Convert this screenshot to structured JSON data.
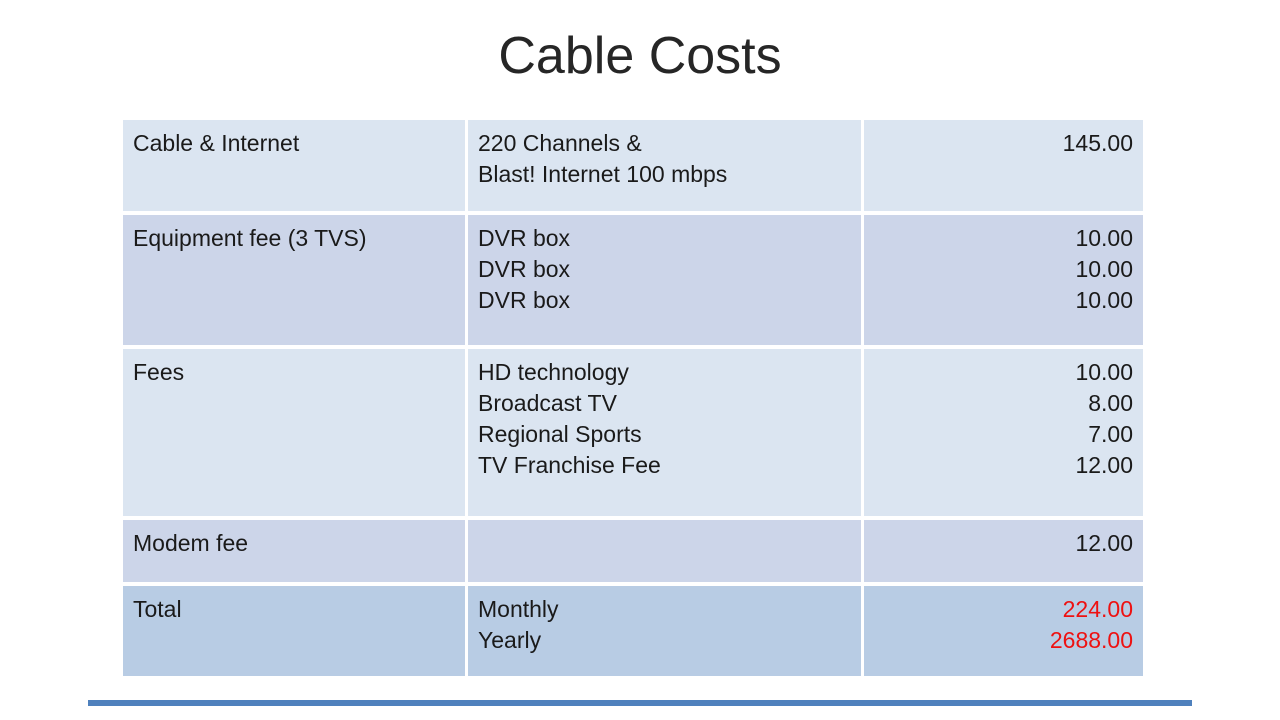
{
  "slide": {
    "title": "Cable Costs",
    "accent_bar_color": "#4f81bd"
  },
  "table": {
    "colors": {
      "band_light": "#dbe5f1",
      "band_dark": "#ccd5e9",
      "band_total": "#b8cce4",
      "total_amount_text": "#ee1111",
      "body_text": "#1a1a1a"
    },
    "rows": [
      {
        "item": "Cable & Internet",
        "description": [
          "220 Channels &",
          "Blast! Internet 100 mbps"
        ],
        "amounts": [
          "145.00"
        ],
        "band": "light"
      },
      {
        "item": "Equipment fee (3 TVS)",
        "description": [
          "DVR box",
          "DVR box",
          "DVR box"
        ],
        "amounts": [
          "10.00",
          "10.00",
          "10.00"
        ],
        "band": "dark"
      },
      {
        "item": "Fees",
        "description": [
          "HD technology",
          "Broadcast TV",
          "Regional Sports",
          "TV Franchise Fee"
        ],
        "amounts": [
          "10.00",
          "8.00",
          "7.00",
          "12.00"
        ],
        "band": "light"
      },
      {
        "item": "Modem fee",
        "description": [],
        "amounts": [
          "12.00"
        ],
        "band": "dark"
      },
      {
        "item": "Total",
        "description": [
          "Monthly",
          "Yearly"
        ],
        "amounts": [
          "224.00",
          "2688.00"
        ],
        "band": "total"
      }
    ]
  }
}
